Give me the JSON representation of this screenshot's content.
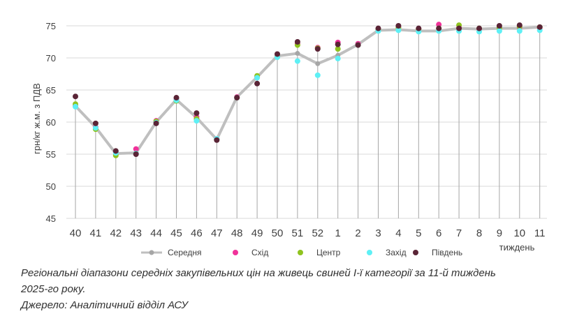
{
  "chart_data": {
    "type": "line",
    "ylabel": "грн/кг ж.м. з ПДВ",
    "xlabel": "тиждень",
    "ylim": [
      45,
      75
    ],
    "yticks": [
      45,
      50,
      55,
      60,
      65,
      70,
      75
    ],
    "categories": [
      "40",
      "41",
      "42",
      "43",
      "44",
      "45",
      "46",
      "47",
      "48",
      "49",
      "50",
      "51",
      "52",
      "1",
      "2",
      "3",
      "4",
      "5",
      "6",
      "7",
      "8",
      "9",
      "10",
      "11"
    ],
    "grid": "horizontal",
    "legend_position": "bottom",
    "series": [
      {
        "name": "Середня",
        "color": "#bfbfbf",
        "style": "line",
        "values": [
          62.5,
          59.2,
          55.1,
          55.2,
          60.0,
          63.5,
          60.7,
          57.3,
          63.9,
          67.0,
          70.3,
          70.7,
          69.1,
          70.4,
          72.1,
          74.3,
          74.4,
          74.2,
          74.2,
          74.6,
          74.5,
          74.6,
          74.6,
          74.8
        ]
      },
      {
        "name": "Схід",
        "color": "#f0329a",
        "style": "marker",
        "values": [
          62.5,
          59.2,
          55.3,
          55.8,
          60.2,
          63.5,
          60.8,
          57.4,
          63.9,
          67.0,
          70.3,
          72.2,
          71.6,
          72.4,
          72.2,
          74.4,
          74.8,
          74.5,
          75.2,
          74.7,
          74.5,
          74.7,
          74.8,
          74.7
        ]
      },
      {
        "name": "Центр",
        "color": "#8fc31f",
        "style": "marker",
        "values": [
          62.8,
          58.9,
          54.8,
          55.1,
          60.1,
          63.3,
          60.5,
          57.3,
          63.8,
          67.2,
          70.2,
          72.0,
          71.5,
          71.4,
          72.0,
          74.4,
          74.7,
          74.5,
          74.6,
          75.1,
          74.6,
          74.7,
          74.9,
          74.8
        ]
      },
      {
        "name": "Захід",
        "color": "#5ef0f5",
        "style": "marker",
        "values": [
          62.4,
          59.1,
          55.2,
          55.1,
          59.9,
          63.4,
          60.2,
          57.4,
          63.8,
          66.9,
          70.1,
          69.5,
          67.3,
          69.9,
          72.0,
          74.2,
          74.3,
          74.1,
          74.2,
          74.2,
          74.1,
          74.2,
          74.2,
          74.3
        ]
      },
      {
        "name": "Південь",
        "color": "#5a2436",
        "style": "marker",
        "values": [
          64.0,
          59.8,
          55.5,
          55.0,
          59.8,
          63.8,
          61.4,
          57.2,
          63.8,
          66.0,
          70.6,
          72.5,
          71.4,
          72.1,
          72.0,
          74.6,
          75.0,
          74.6,
          74.6,
          74.6,
          74.6,
          75.0,
          75.1,
          74.8
        ]
      }
    ]
  },
  "caption": {
    "line1": "Регіональні діапазони середніх закупівельних цін на живець свиней I-ї категорії за 11-й тиждень",
    "line2": "2025-го року.",
    "source": "Джерело: Аналітичний відділ АСУ"
  }
}
